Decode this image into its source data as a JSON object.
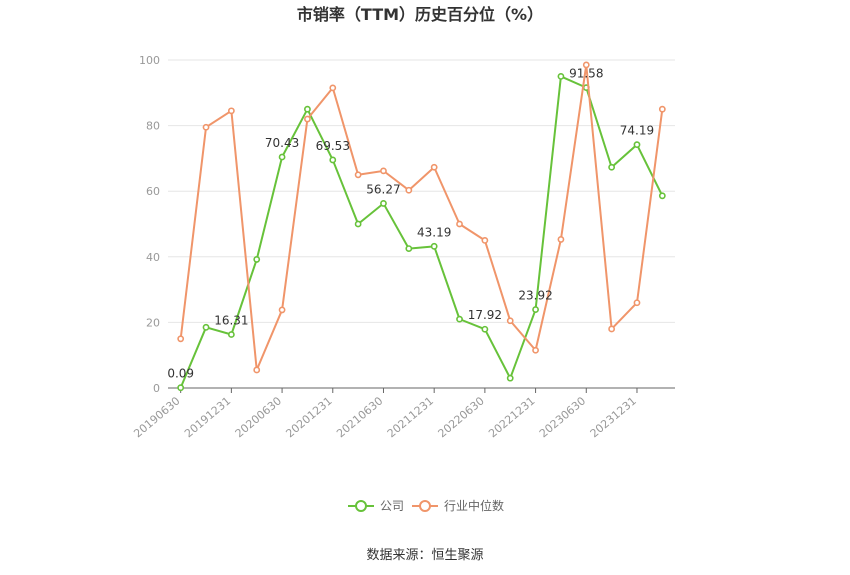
{
  "chart_data": {
    "type": "line",
    "title": "市销率（TTM）历史百分位（%）",
    "x": [
      "20190630",
      "20190930",
      "20191231",
      "20200331",
      "20200630",
      "20200930",
      "20201231",
      "20210331",
      "20210630",
      "20210930",
      "20211231",
      "20220331",
      "20220630",
      "20220930",
      "20221231",
      "20230331",
      "20230630",
      "20230930",
      "20231231",
      "20240331"
    ],
    "xtick_labels": [
      "20190630",
      "20191231",
      "20200630",
      "20201231",
      "20210630",
      "20211231",
      "20220630",
      "20221231",
      "20230630",
      "20231231"
    ],
    "ylim": [
      0,
      100
    ],
    "yticks": [
      0,
      20,
      40,
      60,
      80,
      100
    ],
    "grid": true,
    "legend_position": "bottom",
    "series": [
      {
        "name": "公司",
        "color": "#67c23a",
        "values": [
          0.09,
          18.5,
          16.31,
          39.2,
          70.43,
          85.0,
          69.53,
          50.0,
          56.27,
          42.5,
          43.19,
          21.0,
          17.92,
          3.0,
          23.92,
          95.0,
          91.58,
          67.3,
          74.19,
          58.6
        ],
        "labels": [
          "0.09",
          "",
          "16.31",
          "",
          "70.43",
          "",
          "69.53",
          "",
          "56.27",
          "",
          "43.19",
          "",
          "17.92",
          "",
          "23.92",
          "",
          "91.58",
          "",
          "74.19",
          ""
        ]
      },
      {
        "name": "行业中位数",
        "color": "#f0956a",
        "values": [
          15.0,
          79.5,
          84.5,
          5.5,
          23.8,
          82.0,
          91.5,
          65.0,
          66.2,
          60.3,
          67.3,
          50.0,
          45.0,
          20.5,
          11.5,
          45.3,
          98.5,
          18.0,
          26.0,
          85.0
        ]
      }
    ]
  },
  "source": "数据来源：恒生聚源"
}
